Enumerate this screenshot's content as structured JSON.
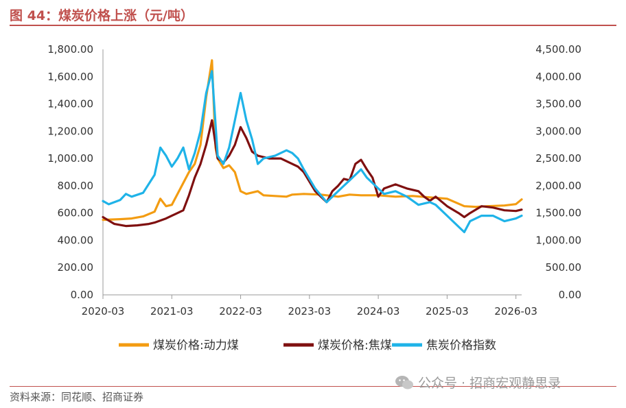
{
  "header": {
    "title": "图 44：煤炭价格上涨（元/吨）",
    "rule_color": "#c0504d"
  },
  "footer": {
    "source": "资料来源：同花顺、招商证券",
    "watermark": "公众号 · 招商宏观静思录"
  },
  "chart_data": {
    "type": "line",
    "title": "",
    "xlabel": "",
    "ylabel": "",
    "x_ticks": [
      "2020-03",
      "2021-03",
      "2022-03",
      "2023-03",
      "2024-03",
      "2025-03",
      "2026-03"
    ],
    "y_left": {
      "min": 0,
      "max": 1800,
      "step": 200,
      "tick_labels": [
        "0.00",
        "200.00",
        "400.00",
        "600.00",
        "800.00",
        "1,000.00",
        "1,200.00",
        "1,400.00",
        "1,600.00",
        "1,800.00"
      ]
    },
    "y_right": {
      "min": 0,
      "max": 4500,
      "step": 500,
      "tick_labels": [
        "0.00",
        "500.00",
        "1,000.00",
        "1,500.00",
        "2,000.00",
        "2,500.00",
        "3,000.00",
        "3,500.00",
        "4,000.00",
        "4,500.00"
      ]
    },
    "grid": false,
    "legend_position": "bottom",
    "series": [
      {
        "name": "煤炭价格:动力煤",
        "axis": "left",
        "color": "#f39c12",
        "points": [
          [
            "2020-03",
            550
          ],
          [
            "2020-06",
            555
          ],
          [
            "2020-08",
            560
          ],
          [
            "2020-10",
            575
          ],
          [
            "2020-12",
            610
          ],
          [
            "2021-01",
            705
          ],
          [
            "2021-02",
            650
          ],
          [
            "2021-03",
            660
          ],
          [
            "2021-05",
            820
          ],
          [
            "2021-06",
            900
          ],
          [
            "2021-07",
            960
          ],
          [
            "2021-08",
            1100
          ],
          [
            "2021-09",
            1450
          ],
          [
            "2021-10",
            1720
          ],
          [
            "2021-10-20",
            1080
          ],
          [
            "2021-11",
            1000
          ],
          [
            "2021-12",
            930
          ],
          [
            "2022-01",
            950
          ],
          [
            "2022-02",
            900
          ],
          [
            "2022-03",
            760
          ],
          [
            "2022-04",
            740
          ],
          [
            "2022-06",
            760
          ],
          [
            "2022-07",
            730
          ],
          [
            "2022-09",
            725
          ],
          [
            "2022-11",
            720
          ],
          [
            "2022-12",
            735
          ],
          [
            "2023-02",
            740
          ],
          [
            "2023-05",
            735
          ],
          [
            "2023-08",
            720
          ],
          [
            "2023-10",
            735
          ],
          [
            "2023-12",
            730
          ],
          [
            "2024-03",
            730
          ],
          [
            "2024-06",
            720
          ],
          [
            "2024-09",
            725
          ],
          [
            "2024-12",
            715
          ],
          [
            "2025-03",
            705
          ],
          [
            "2025-06",
            650
          ],
          [
            "2025-08",
            645
          ],
          [
            "2025-10",
            650
          ],
          [
            "2026-01",
            655
          ],
          [
            "2026-03",
            665
          ],
          [
            "2026-04",
            700
          ]
        ]
      },
      {
        "name": "煤炭价格:焦煤",
        "axis": "left",
        "color": "#7f1010",
        "points": [
          [
            "2020-03",
            570
          ],
          [
            "2020-05",
            520
          ],
          [
            "2020-07",
            505
          ],
          [
            "2020-09",
            510
          ],
          [
            "2020-11",
            520
          ],
          [
            "2020-12",
            530
          ],
          [
            "2021-02",
            560
          ],
          [
            "2021-03",
            580
          ],
          [
            "2021-05",
            620
          ],
          [
            "2021-06",
            730
          ],
          [
            "2021-07",
            860
          ],
          [
            "2021-08",
            960
          ],
          [
            "2021-09",
            1100
          ],
          [
            "2021-10",
            1280
          ],
          [
            "2021-11",
            1000
          ],
          [
            "2021-12",
            970
          ],
          [
            "2022-01",
            1020
          ],
          [
            "2022-02",
            1100
          ],
          [
            "2022-03",
            1230
          ],
          [
            "2022-04",
            1150
          ],
          [
            "2022-05",
            1050
          ],
          [
            "2022-06",
            1020
          ],
          [
            "2022-08",
            1000
          ],
          [
            "2022-10",
            1000
          ],
          [
            "2022-12",
            960
          ],
          [
            "2023-01",
            940
          ],
          [
            "2023-02",
            900
          ],
          [
            "2023-04",
            760
          ],
          [
            "2023-06",
            680
          ],
          [
            "2023-07",
            760
          ],
          [
            "2023-08",
            800
          ],
          [
            "2023-09",
            850
          ],
          [
            "2023-10",
            840
          ],
          [
            "2023-11",
            960
          ],
          [
            "2023-12",
            990
          ],
          [
            "2024-01",
            920
          ],
          [
            "2024-02",
            860
          ],
          [
            "2024-03",
            720
          ],
          [
            "2024-04",
            780
          ],
          [
            "2024-06",
            810
          ],
          [
            "2024-08",
            780
          ],
          [
            "2024-10",
            760
          ],
          [
            "2024-11",
            720
          ],
          [
            "2024-12",
            690
          ],
          [
            "2025-01",
            720
          ],
          [
            "2025-03",
            650
          ],
          [
            "2025-05",
            600
          ],
          [
            "2025-06",
            570
          ],
          [
            "2025-07",
            600
          ],
          [
            "2025-09",
            650
          ],
          [
            "2025-11",
            640
          ],
          [
            "2026-01",
            620
          ],
          [
            "2026-03",
            615
          ],
          [
            "2026-04",
            625
          ]
        ]
      },
      {
        "name": "焦炭价格指数",
        "axis": "right",
        "color": "#1fb3e8",
        "points": [
          [
            "2020-03",
            1720
          ],
          [
            "2020-04",
            1660
          ],
          [
            "2020-06",
            1740
          ],
          [
            "2020-07",
            1850
          ],
          [
            "2020-08",
            1800
          ],
          [
            "2020-10",
            1870
          ],
          [
            "2020-12",
            2200
          ],
          [
            "2021-01",
            2700
          ],
          [
            "2021-02",
            2550
          ],
          [
            "2021-03",
            2350
          ],
          [
            "2021-04",
            2500
          ],
          [
            "2021-05",
            2700
          ],
          [
            "2021-06",
            2300
          ],
          [
            "2021-07",
            2600
          ],
          [
            "2021-08",
            3000
          ],
          [
            "2021-09",
            3700
          ],
          [
            "2021-10",
            4100
          ],
          [
            "2021-11",
            2550
          ],
          [
            "2021-12",
            2400
          ],
          [
            "2022-01",
            2700
          ],
          [
            "2022-02",
            3200
          ],
          [
            "2022-03",
            3700
          ],
          [
            "2022-04",
            3200
          ],
          [
            "2022-05",
            2850
          ],
          [
            "2022-06",
            2400
          ],
          [
            "2022-07",
            2500
          ],
          [
            "2022-09",
            2550
          ],
          [
            "2022-11",
            2650
          ],
          [
            "2022-12",
            2600
          ],
          [
            "2023-01",
            2500
          ],
          [
            "2023-02",
            2300
          ],
          [
            "2023-04",
            1950
          ],
          [
            "2023-06",
            1700
          ],
          [
            "2023-07",
            1800
          ],
          [
            "2023-09",
            2000
          ],
          [
            "2023-11",
            2200
          ],
          [
            "2023-12",
            2300
          ],
          [
            "2024-01",
            2150
          ],
          [
            "2024-03",
            1950
          ],
          [
            "2024-04",
            1850
          ],
          [
            "2024-06",
            1900
          ],
          [
            "2024-08",
            1800
          ],
          [
            "2024-10",
            1650
          ],
          [
            "2024-12",
            1700
          ],
          [
            "2025-01",
            1650
          ],
          [
            "2025-03",
            1450
          ],
          [
            "2025-05",
            1250
          ],
          [
            "2025-06",
            1150
          ],
          [
            "2025-07",
            1350
          ],
          [
            "2025-09",
            1450
          ],
          [
            "2025-11",
            1450
          ],
          [
            "2026-01",
            1350
          ],
          [
            "2026-03",
            1400
          ],
          [
            "2026-04",
            1450
          ]
        ]
      }
    ]
  }
}
